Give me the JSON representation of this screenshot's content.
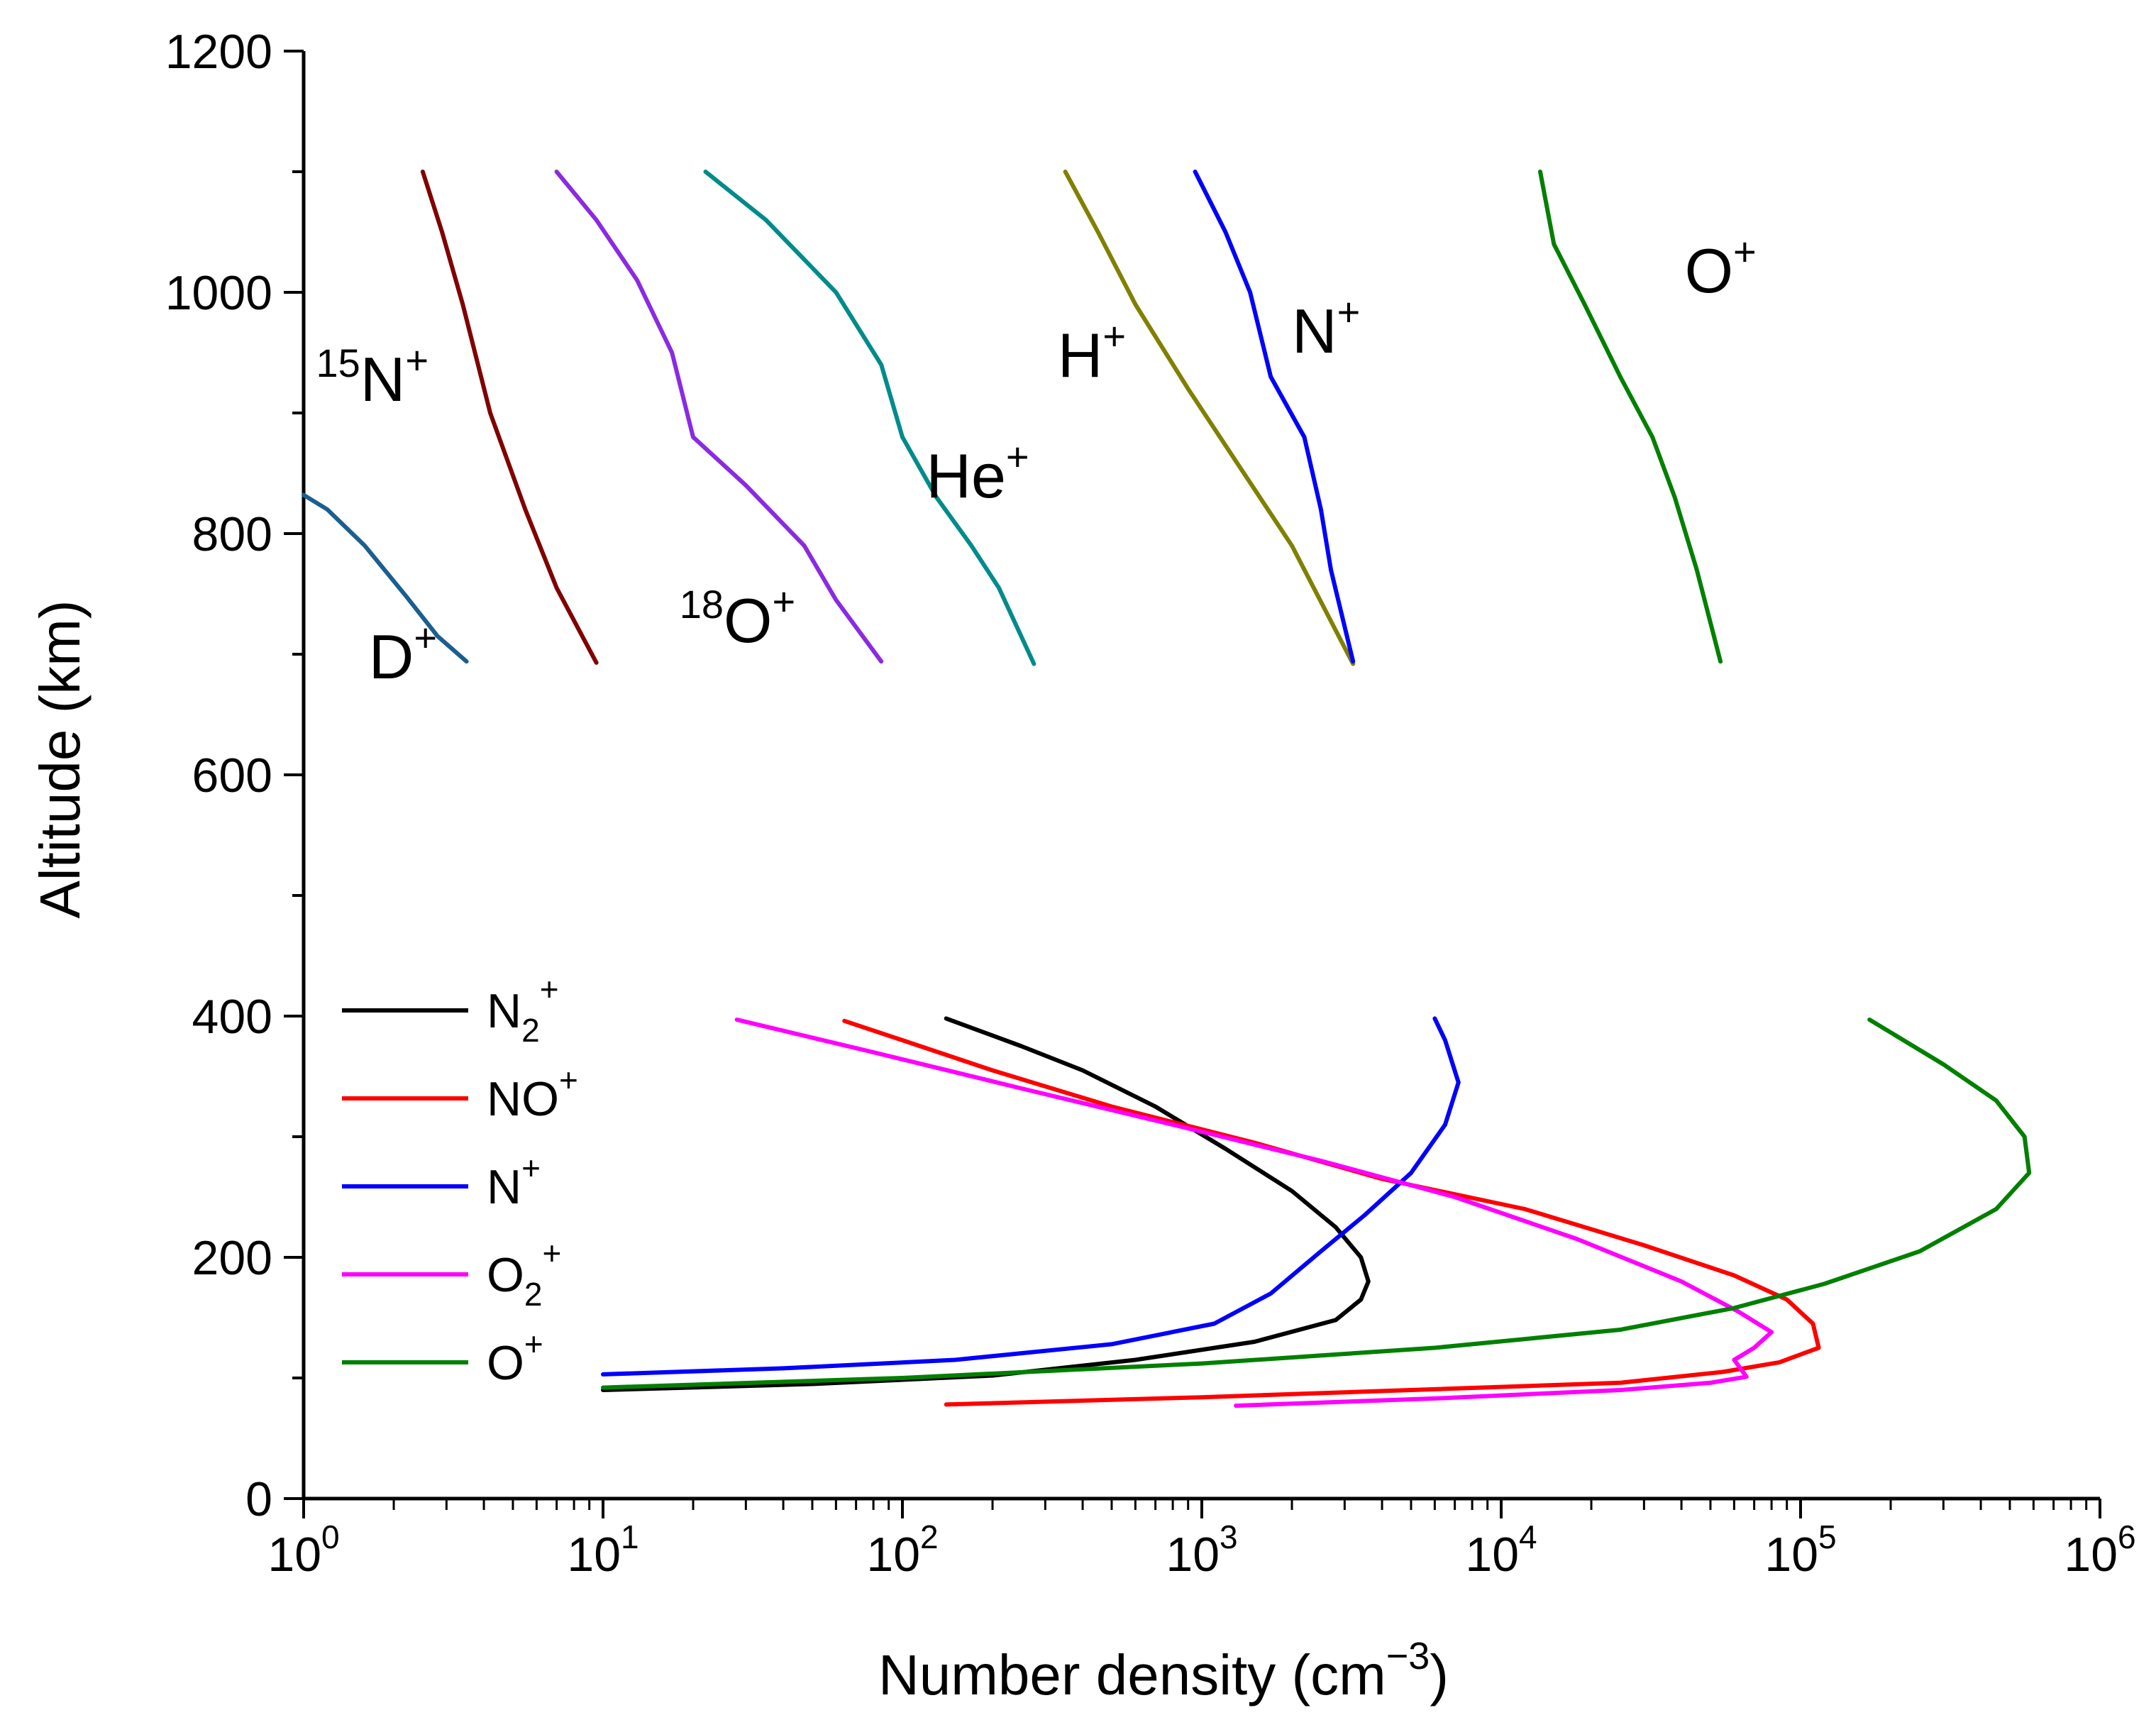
{
  "chart_data": {
    "type": "line",
    "xlabel": "Number density (cm",
    "xlabel_sup": "−3",
    "xlabel_close": ")",
    "ylabel": "Altitude (km)",
    "xscale": "log",
    "xlim": [
      1,
      1000000
    ],
    "ylim": [
      0,
      1200
    ],
    "y_ticks": [
      0,
      200,
      400,
      600,
      800,
      1000,
      1200
    ],
    "x_ticks": [
      {
        "base": "10",
        "exp": "0"
      },
      {
        "base": "10",
        "exp": "1"
      },
      {
        "base": "10",
        "exp": "2"
      },
      {
        "base": "10",
        "exp": "3"
      },
      {
        "base": "10",
        "exp": "4"
      },
      {
        "base": "10",
        "exp": "5"
      },
      {
        "base": "10",
        "exp": "6"
      }
    ],
    "legend": {
      "position": "lower-left",
      "entries": [
        {
          "base": "N",
          "sub": "2",
          "sup": "+",
          "color": "#000000"
        },
        {
          "base": "NO",
          "sub": "",
          "sup": "+",
          "color": "#ff0000"
        },
        {
          "base": "N",
          "sub": "",
          "sup": "+",
          "color": "#0000ff"
        },
        {
          "base": "O",
          "sub": "2",
          "sup": "+",
          "color": "#ff00ff"
        },
        {
          "base": "O",
          "sub": "",
          "sup": "+",
          "color": "#008000"
        }
      ]
    },
    "series": [
      {
        "name": "N2+",
        "group": "lower",
        "color": "#000000",
        "points": [
          [
            10,
            90
          ],
          [
            50,
            95
          ],
          [
            200,
            102
          ],
          [
            600,
            115
          ],
          [
            1500,
            130
          ],
          [
            2800,
            148
          ],
          [
            3400,
            165
          ],
          [
            3600,
            180
          ],
          [
            3400,
            200
          ],
          [
            2800,
            225
          ],
          [
            2000,
            255
          ],
          [
            1200,
            290
          ],
          [
            700,
            325
          ],
          [
            400,
            355
          ],
          [
            250,
            375
          ],
          [
            140,
            398
          ]
        ]
      },
      {
        "name": "NO+",
        "group": "lower",
        "color": "#ff0000",
        "points": [
          [
            140,
            78
          ],
          [
            1000,
            84
          ],
          [
            5000,
            90
          ],
          [
            25000,
            96
          ],
          [
            55000,
            105
          ],
          [
            85000,
            113
          ],
          [
            115000,
            125
          ],
          [
            110000,
            145
          ],
          [
            90000,
            165
          ],
          [
            60000,
            185
          ],
          [
            30000,
            210
          ],
          [
            12000,
            240
          ],
          [
            4000,
            265
          ],
          [
            1500,
            295
          ],
          [
            500,
            325
          ],
          [
            200,
            355
          ],
          [
            100,
            380
          ],
          [
            64.0,
            396
          ]
        ]
      },
      {
        "name": "N+",
        "group": "lower",
        "color": "#0000ff",
        "points": [
          [
            10,
            103
          ],
          [
            40,
            108
          ],
          [
            150,
            115
          ],
          [
            500,
            128
          ],
          [
            1100,
            145
          ],
          [
            1700,
            170
          ],
          [
            2500,
            205
          ],
          [
            3500,
            235
          ],
          [
            5000,
            270
          ],
          [
            6500,
            310
          ],
          [
            7200,
            345
          ],
          [
            6500,
            380
          ],
          [
            6000,
            398
          ]
        ]
      },
      {
        "name": "O2+",
        "group": "lower",
        "color": "#ff00ff",
        "points": [
          [
            1300,
            77
          ],
          [
            6000,
            83
          ],
          [
            25000,
            90
          ],
          [
            50000,
            96
          ],
          [
            66000,
            101
          ],
          [
            60000,
            115
          ],
          [
            70000,
            125
          ],
          [
            80000,
            138
          ],
          [
            62000,
            155
          ],
          [
            40000,
            180
          ],
          [
            18000,
            215
          ],
          [
            7000,
            250
          ],
          [
            2500,
            280
          ],
          [
            800,
            310
          ],
          [
            250,
            340
          ],
          [
            80,
            370
          ],
          [
            28,
            397
          ]
        ]
      },
      {
        "name": "O+",
        "group": "lower",
        "color": "#008000",
        "points": [
          [
            10,
            92
          ],
          [
            100,
            100
          ],
          [
            1000,
            112
          ],
          [
            6000,
            125
          ],
          [
            25000,
            140
          ],
          [
            60000,
            158
          ],
          [
            120000,
            178
          ],
          [
            250000,
            205
          ],
          [
            450000,
            240
          ],
          [
            580000,
            270
          ],
          [
            560000,
            300
          ],
          [
            450000,
            330
          ],
          [
            300000,
            360
          ],
          [
            170000,
            397
          ]
        ]
      },
      {
        "name": "D+",
        "group": "upper",
        "color": "#1a5f8f",
        "points": [
          [
            1,
            832
          ],
          [
            1.2,
            820
          ],
          [
            1.6,
            790
          ],
          [
            2.2,
            748
          ],
          [
            2.8,
            715
          ],
          [
            3.5,
            694
          ]
        ]
      },
      {
        "name": "15N+",
        "group": "upper",
        "color": "#800000",
        "points": [
          [
            2.5,
            1100
          ],
          [
            2.9,
            1050
          ],
          [
            3.4,
            990
          ],
          [
            4.2,
            900
          ],
          [
            5.5,
            820
          ],
          [
            7,
            755
          ],
          [
            9.5,
            693
          ]
        ]
      },
      {
        "name": "18O+",
        "group": "upper",
        "color": "#8a2be2",
        "points": [
          [
            7,
            1100
          ],
          [
            9.5,
            1060
          ],
          [
            13,
            1010
          ],
          [
            17,
            950
          ],
          [
            20,
            880
          ],
          [
            30,
            840
          ],
          [
            47,
            790
          ],
          [
            60,
            745
          ],
          [
            85,
            694
          ]
        ]
      },
      {
        "name": "He+",
        "group": "upper",
        "color": "#008b8b",
        "points": [
          [
            22,
            1100
          ],
          [
            35,
            1060
          ],
          [
            60,
            1000
          ],
          [
            85,
            940
          ],
          [
            100,
            880
          ],
          [
            130,
            830
          ],
          [
            170,
            790
          ],
          [
            210,
            755
          ],
          [
            275,
            692
          ]
        ]
      },
      {
        "name": "H+",
        "group": "upper",
        "color": "#808000",
        "points": [
          [
            350,
            1100
          ],
          [
            450,
            1050
          ],
          [
            600,
            990
          ],
          [
            900,
            920
          ],
          [
            1300,
            860
          ],
          [
            2000,
            790
          ],
          [
            3200,
            692
          ]
        ]
      },
      {
        "name": "N+",
        "group": "upper",
        "color": "#0000ff",
        "points": [
          [
            950,
            1100
          ],
          [
            1200,
            1050
          ],
          [
            1450,
            1000
          ],
          [
            1700,
            930
          ],
          [
            2200,
            880
          ],
          [
            2500,
            820
          ],
          [
            2700,
            770
          ],
          [
            3200,
            694
          ]
        ]
      },
      {
        "name": "O+",
        "group": "upper",
        "color": "#008000",
        "points": [
          [
            13500,
            1100
          ],
          [
            15000,
            1040
          ],
          [
            19000,
            990
          ],
          [
            25000,
            930
          ],
          [
            32000,
            880
          ],
          [
            38000,
            830
          ],
          [
            45000,
            770
          ],
          [
            54000,
            694
          ]
        ]
      }
    ],
    "annotations": [
      {
        "key": "d",
        "pre": "",
        "base": "D",
        "sup": "+",
        "x": 1.65,
        "y": 680,
        "color": "#000000"
      },
      {
        "key": "n15",
        "pre": "15",
        "base": "N",
        "sup": "+",
        "x": 1.1,
        "y": 910,
        "color": "#000000"
      },
      {
        "key": "o18",
        "pre": "18",
        "base": "O",
        "sup": "+",
        "x": 18,
        "y": 710,
        "color": "#000000"
      },
      {
        "key": "he",
        "pre": "",
        "base": "He",
        "sup": "+",
        "x": 120,
        "y": 830,
        "color": "#000000"
      },
      {
        "key": "h",
        "pre": "",
        "base": "H",
        "sup": "+",
        "x": 330,
        "y": 930,
        "color": "#000000"
      },
      {
        "key": "n",
        "pre": "",
        "base": "N",
        "sup": "+",
        "x": 2000,
        "y": 950,
        "color": "#000000"
      },
      {
        "key": "o",
        "pre": "",
        "base": "O",
        "sup": "+",
        "x": 41000,
        "y": 1000,
        "color": "#000000"
      }
    ]
  }
}
